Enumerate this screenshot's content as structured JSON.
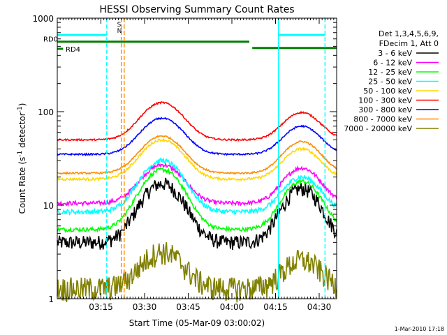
{
  "chart_data": {
    "type": "line",
    "title": "HESSI Observing Summary Count Rates",
    "xlabel": "Start Time (05-Mar-09 03:00:02)",
    "ylabel_parts": [
      "Count Rate (s",
      "-1",
      " detector",
      "-1",
      ")"
    ],
    "y_scale": "log",
    "ylim": [
      1,
      1000
    ],
    "xlim_minutes": [
      0,
      96
    ],
    "x_tick_labels": [
      {
        "label": "03:15",
        "minute": 15
      },
      {
        "label": "03:30",
        "minute": 30
      },
      {
        "label": "03:45",
        "minute": 45
      },
      {
        "label": "04:00",
        "minute": 60
      },
      {
        "label": "04:15",
        "minute": 75
      },
      {
        "label": "04:30",
        "minute": 90
      }
    ],
    "y_tick_labels": [
      {
        "label": "1",
        "value": 1
      },
      {
        "label": "10",
        "value": 10
      },
      {
        "label": "100",
        "value": 100
      },
      {
        "label": "1000",
        "value": 1000
      }
    ],
    "legend_header": [
      "Det 1,3,4,5,6,9,",
      "FDecim 1, Att 0"
    ],
    "legend_placement": "right",
    "footer_date": "1-Mar-2010 17:18",
    "series": [
      {
        "name": "3 - 6 keV",
        "color": "#000000",
        "quiet": 4,
        "peak1": 17,
        "peak2": 15,
        "noise": 0.18
      },
      {
        "name": "6 - 12 keV",
        "color": "#ff00ff",
        "quiet": 10.5,
        "peak1": 27,
        "peak2": 25,
        "noise": 0.05
      },
      {
        "name": "12 - 25 keV",
        "color": "#00ff00",
        "quiet": 5.5,
        "peak1": 24,
        "peak2": 18,
        "noise": 0.05
      },
      {
        "name": "25 - 50 keV",
        "color": "#00ffff",
        "quiet": 8.5,
        "peak1": 30,
        "peak2": 20,
        "noise": 0.06
      },
      {
        "name": "50 - 100 keV",
        "color": "#ffd700",
        "quiet": 19,
        "peak1": 50,
        "peak2": 40,
        "noise": 0.03
      },
      {
        "name": "100 - 300 keV",
        "color": "#ff0000",
        "quiet": 50,
        "peak1": 125,
        "peak2": 98,
        "noise": 0.02
      },
      {
        "name": "300 - 800 keV",
        "color": "#0000ff",
        "quiet": 35,
        "peak1": 85,
        "peak2": 70,
        "noise": 0.02
      },
      {
        "name": "800 - 7000 keV",
        "color": "#ff8c00",
        "quiet": 22,
        "peak1": 55,
        "peak2": 48,
        "noise": 0.02
      },
      {
        "name": "7000 - 20000 keV",
        "color": "#808000",
        "quiet": 1.3,
        "peak1": 3.2,
        "peak2": 2.6,
        "noise": 0.3
      }
    ],
    "series_structure": {
      "peak1_minute": 36,
      "peak2_minute": 84,
      "quiet_from_minute": 50,
      "quiet_to_minute": 67,
      "data_gap_minute": 22
    },
    "state_bars": [
      {
        "label": "RD0",
        "color": "#008000",
        "segments": [
          [
            0,
            66
          ],
          [
            67,
            96
          ]
        ],
        "values": [
          560,
          480
        ]
      },
      {
        "label": "RD4",
        "color": "#008000",
        "segments": [
          [
            0,
            2
          ]
        ],
        "values": [
          470
        ]
      }
    ],
    "saa_night": [
      {
        "label": "",
        "color": "#00ffff",
        "segments": [
          [
            0,
            17
          ],
          [
            76,
            92
          ]
        ],
        "value": 660
      }
    ],
    "vertical_markers": [
      {
        "minute": 17,
        "color": "#00ffff",
        "style": "dashed"
      },
      {
        "minute": 22,
        "color": "#ff8c00",
        "style": "dashed"
      },
      {
        "minute": 23,
        "color": "#ff8c00",
        "style": "dashed"
      },
      {
        "minute": 76,
        "color": "#00ffff",
        "style": "solid"
      },
      {
        "minute": 92,
        "color": "#00ffff",
        "style": "dashed"
      }
    ],
    "marker_labels": [
      {
        "label": "S",
        "color": "#ff8c00"
      },
      {
        "label": "N",
        "color": "#00ffff"
      }
    ]
  }
}
